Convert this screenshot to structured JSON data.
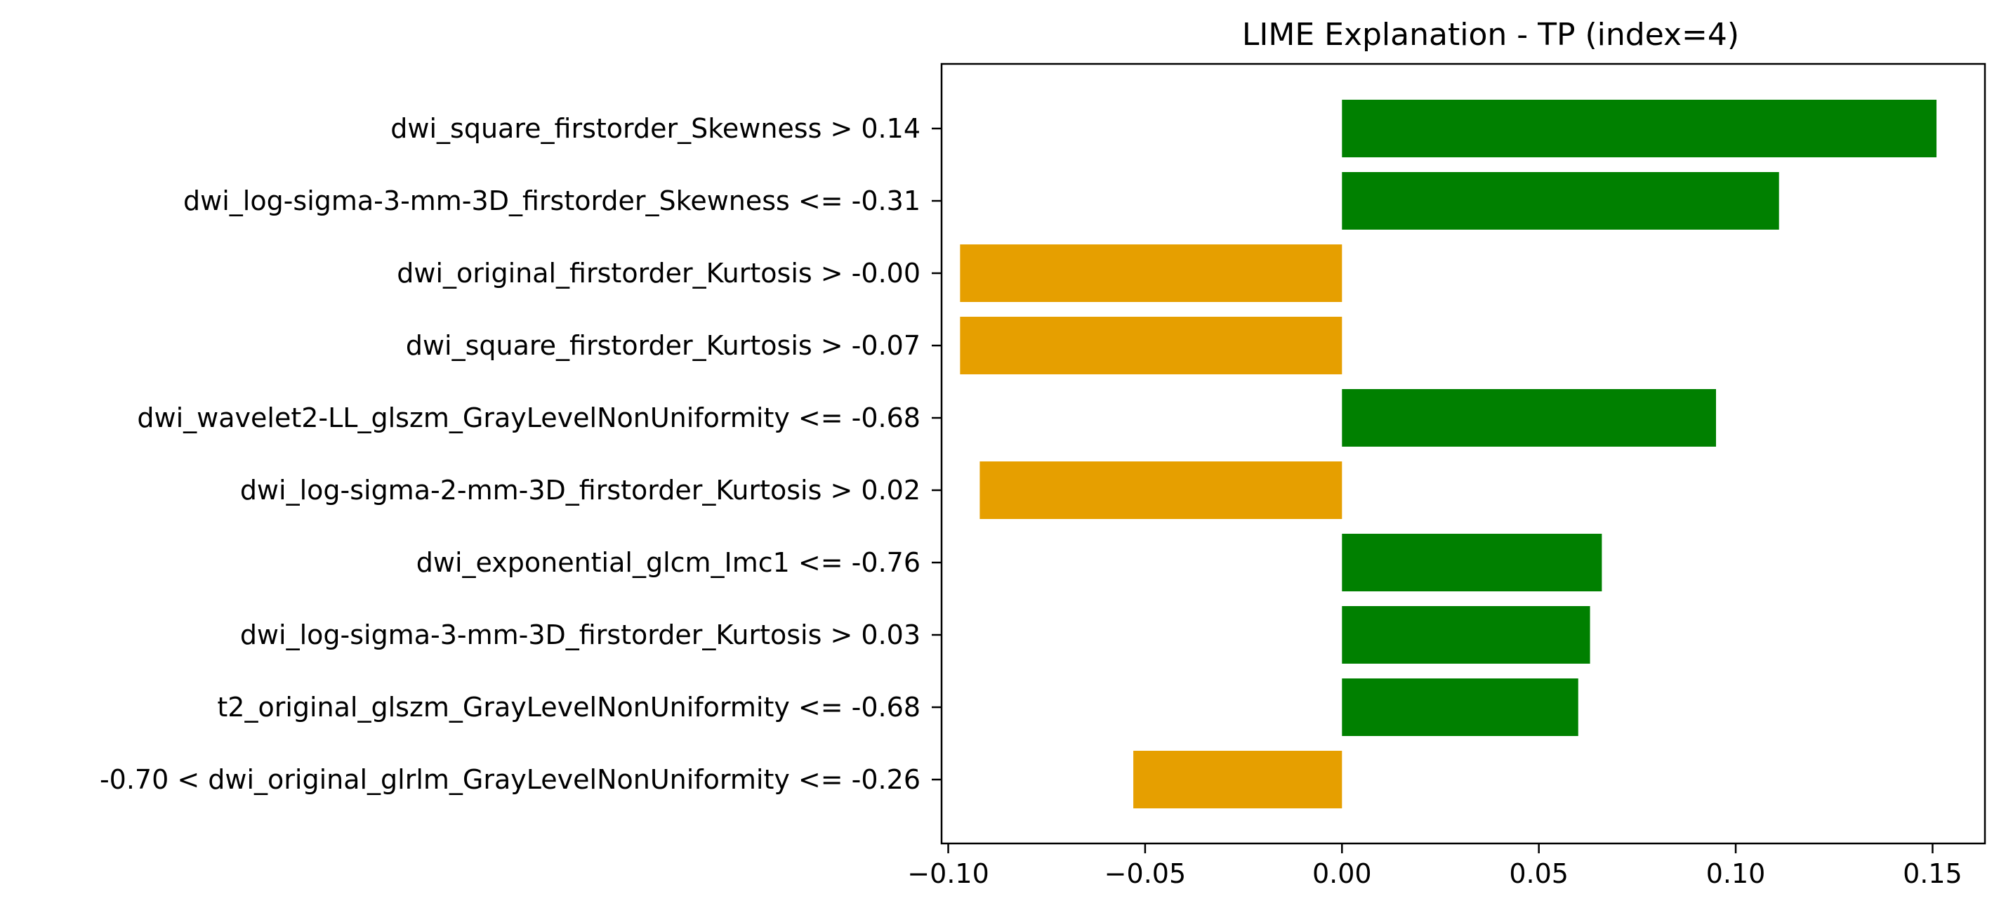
{
  "chart_data": {
    "type": "bar",
    "orientation": "horizontal",
    "title": "LIME Explanation - TP (index=4)",
    "xlabel": "",
    "ylabel": "",
    "xlim": [
      -0.1017,
      0.1633
    ],
    "xticks": [
      -0.1,
      -0.05,
      0.0,
      0.05,
      0.1,
      0.15
    ],
    "xtick_labels": [
      "−0.10",
      "−0.05",
      "0.00",
      "0.05",
      "0.10",
      "0.15"
    ],
    "grid": false,
    "legend": "none",
    "categories": [
      "dwi_square_firstorder_Skewness > 0.14",
      "dwi_log-sigma-3-mm-3D_firstorder_Skewness <= -0.31",
      "dwi_original_firstorder_Kurtosis > -0.00",
      "dwi_square_firstorder_Kurtosis > -0.07",
      "dwi_wavelet2-LL_glszm_GrayLevelNonUniformity <= -0.68",
      "dwi_log-sigma-2-mm-3D_firstorder_Kurtosis > 0.02",
      "dwi_exponential_glcm_Imc1 <= -0.76",
      "dwi_log-sigma-3-mm-3D_firstorder_Kurtosis > 0.03",
      "t2_original_glszm_GrayLevelNonUniformity <= -0.68",
      "-0.70 < dwi_original_glrlm_GrayLevelNonUniformity <= -0.26"
    ],
    "values": [
      0.151,
      0.111,
      -0.097,
      -0.097,
      0.095,
      -0.092,
      0.066,
      0.063,
      0.06,
      -0.053
    ],
    "colors": {
      "positive": "#008000",
      "negative": "#e69f00"
    }
  }
}
